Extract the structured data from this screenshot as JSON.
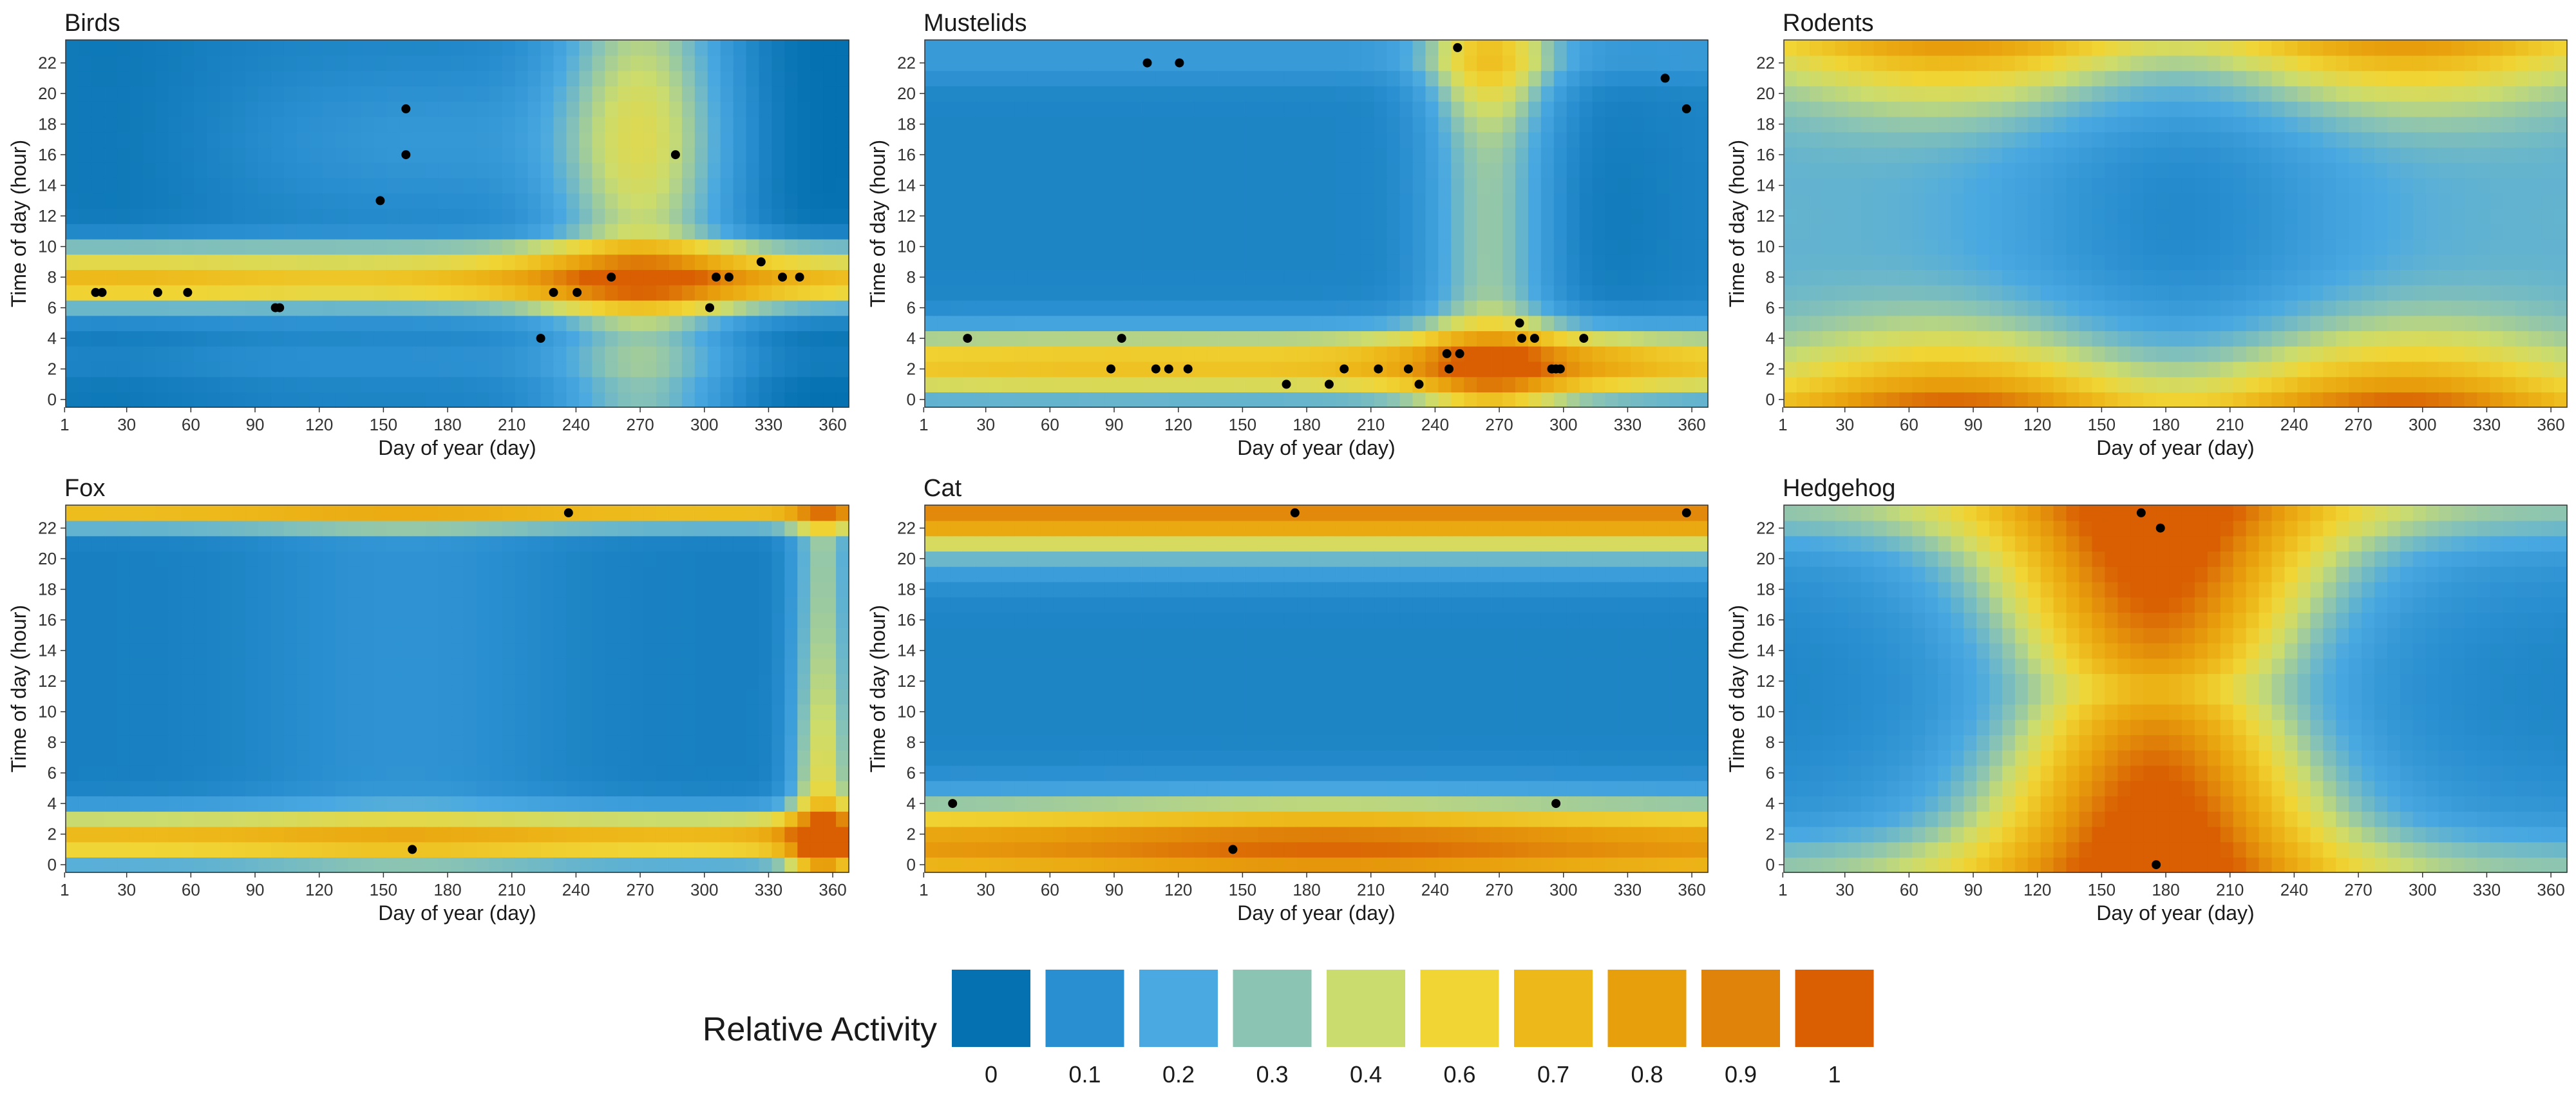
{
  "figure": {
    "x_axis_label": "Day of year (day)",
    "y_axis_label": "Time of day (hour)",
    "x_ticks": [
      1,
      30,
      60,
      90,
      120,
      150,
      180,
      210,
      240,
      270,
      300,
      330,
      360
    ],
    "y_ticks": [
      0,
      2,
      4,
      6,
      8,
      10,
      12,
      14,
      16,
      18,
      20,
      22
    ]
  },
  "legend": {
    "title": "Relative Activity",
    "items": [
      {
        "label": "0",
        "color": "#0571b0"
      },
      {
        "label": "0.1",
        "color": "#2a8fd0"
      },
      {
        "label": "0.2",
        "color": "#4aa9e1"
      },
      {
        "label": "0.3",
        "color": "#8bc4b3"
      },
      {
        "label": "0.4",
        "color": "#cbdc6e"
      },
      {
        "label": "0.6",
        "color": "#f0d535"
      },
      {
        "label": "0.7",
        "color": "#edb81a"
      },
      {
        "label": "0.8",
        "color": "#e89f0c"
      },
      {
        "label": "0.9",
        "color": "#e0830a"
      },
      {
        "label": "1",
        "color": "#d95f02"
      }
    ]
  },
  "chart_data": [
    {
      "type": "heatmap",
      "title": "Birds",
      "xlabel": "Day of year (day)",
      "ylabel": "Time of day (hour)",
      "xlim": [
        1,
        366
      ],
      "ylim": [
        0,
        23
      ],
      "pattern": "birds",
      "points": [
        [
          15,
          7
        ],
        [
          18,
          7
        ],
        [
          44,
          7
        ],
        [
          58,
          7
        ],
        [
          99,
          6
        ],
        [
          101,
          6
        ],
        [
          148,
          13
        ],
        [
          160,
          19
        ],
        [
          160,
          16
        ],
        [
          223,
          4
        ],
        [
          229,
          7
        ],
        [
          240,
          7
        ],
        [
          256,
          8
        ],
        [
          286,
          16
        ],
        [
          302,
          6
        ],
        [
          305,
          8
        ],
        [
          311,
          8
        ],
        [
          326,
          9
        ],
        [
          336,
          8
        ],
        [
          344,
          8
        ]
      ]
    },
    {
      "type": "heatmap",
      "title": "Mustelids",
      "xlabel": "Day of year (day)",
      "ylabel": "Time of day (hour)",
      "xlim": [
        1,
        366
      ],
      "ylim": [
        0,
        23
      ],
      "pattern": "mustelids",
      "points": [
        [
          21,
          4
        ],
        [
          88,
          2
        ],
        [
          93,
          4
        ],
        [
          105,
          22
        ],
        [
          109,
          2
        ],
        [
          115,
          2
        ],
        [
          120,
          22
        ],
        [
          124,
          2
        ],
        [
          170,
          1
        ],
        [
          190,
          1
        ],
        [
          197,
          2
        ],
        [
          213,
          2
        ],
        [
          227,
          2
        ],
        [
          232,
          1
        ],
        [
          245,
          3
        ],
        [
          246,
          2
        ],
        [
          250,
          23
        ],
        [
          251,
          3
        ],
        [
          279,
          5
        ],
        [
          280,
          4
        ],
        [
          286,
          4
        ],
        [
          294,
          2
        ],
        [
          296,
          2
        ],
        [
          298,
          2
        ],
        [
          309,
          4
        ],
        [
          347,
          21
        ],
        [
          357,
          19
        ]
      ]
    },
    {
      "type": "heatmap",
      "title": "Rodents",
      "xlabel": "Day of year (day)",
      "ylabel": "Time of day (hour)",
      "xlim": [
        1,
        366
      ],
      "ylim": [
        0,
        23
      ],
      "pattern": "rodents",
      "points": []
    },
    {
      "type": "heatmap",
      "title": "Fox",
      "xlabel": "Day of year (day)",
      "ylabel": "Time of day (hour)",
      "xlim": [
        1,
        366
      ],
      "ylim": [
        0,
        23
      ],
      "pattern": "fox",
      "points": [
        [
          236,
          23
        ],
        [
          163,
          1
        ]
      ]
    },
    {
      "type": "heatmap",
      "title": "Cat",
      "xlabel": "Day of year (day)",
      "ylabel": "Time of day (hour)",
      "xlim": [
        1,
        366
      ],
      "ylim": [
        0,
        23
      ],
      "pattern": "cat",
      "points": [
        [
          14,
          4
        ],
        [
          145,
          1
        ],
        [
          174,
          23
        ],
        [
          296,
          4
        ],
        [
          357,
          23
        ]
      ]
    },
    {
      "type": "heatmap",
      "title": "Hedgehog",
      "xlabel": "Day of year (day)",
      "ylabel": "Time of day (hour)",
      "xlim": [
        1,
        366
      ],
      "ylim": [
        0,
        23
      ],
      "pattern": "hedgehog",
      "points": [
        [
          168,
          23
        ],
        [
          177,
          22
        ],
        [
          175,
          0
        ]
      ]
    }
  ]
}
